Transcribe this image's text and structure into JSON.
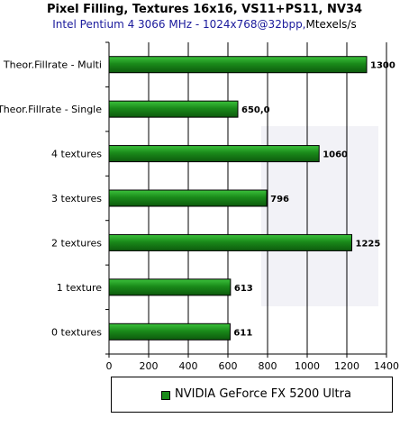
{
  "header": {
    "title": "Pixel Filling, Textures 16x16, VS11+PS11, NV34",
    "subtitle_main": "Intel Pentium 4 3066 MHz - 1024x768@32bpp,",
    "subtitle_unit": "Mtexels/s"
  },
  "colors": {
    "bar_fill": "#1a8a1a",
    "bar_top": "#3cc23c",
    "bar_dark": "#0d5a0d",
    "subtitle": "#1a1a9c"
  },
  "chart_data": {
    "type": "bar",
    "orientation": "horizontal",
    "title": "Pixel Filling, Textures 16x16, VS11+PS11, NV34",
    "subtitle": "Intel Pentium 4 3066 MHz - 1024x768@32bpp,Mtexels/s",
    "categories": [
      "Theor.Fillrate - Multi",
      "Theor.Fillrate - Single",
      "4 textures",
      "3 textures",
      "2 textures",
      "1 texture",
      "0 textures"
    ],
    "series": [
      {
        "name": "NVIDIA GeForce FX 5200 Ultra",
        "values": [
          1300,
          650,
          1060,
          796,
          1225,
          613,
          611
        ],
        "labels": [
          "1300",
          "650,0",
          "1060",
          "796",
          "1225",
          "613",
          "611"
        ]
      }
    ],
    "xlim": [
      0,
      1400
    ],
    "xticks": [
      "0",
      "200",
      "400",
      "600",
      "800",
      "1000",
      "1200",
      "1400"
    ],
    "grid": true,
    "legend": "bottom"
  }
}
